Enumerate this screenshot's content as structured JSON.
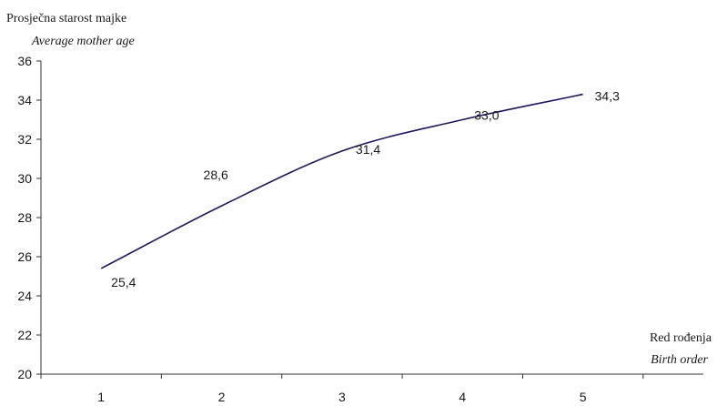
{
  "chart_data": {
    "type": "line",
    "ylabel": "Prosječna starost majke",
    "ylabel_en": "Average mother age",
    "xlabel": "Red rođenja",
    "xlabel_en": "Birth order",
    "categories": [
      "1",
      "2",
      "3",
      "4",
      "5"
    ],
    "x": [
      1,
      2,
      3,
      4,
      5
    ],
    "values": [
      25.4,
      28.6,
      31.4,
      33.0,
      34.3
    ],
    "value_labels": [
      "25,4",
      "28,6",
      "31,4",
      "33,0",
      "34,3"
    ],
    "ylim": [
      20,
      36
    ],
    "yticks": [
      20,
      22,
      24,
      26,
      28,
      30,
      32,
      34,
      36
    ],
    "ytick_labels": [
      "20",
      "22",
      "24",
      "26",
      "28",
      "30",
      "32",
      "34",
      "36"
    ],
    "grid": false,
    "legend": "none",
    "line_color": "#1f1a5c"
  }
}
